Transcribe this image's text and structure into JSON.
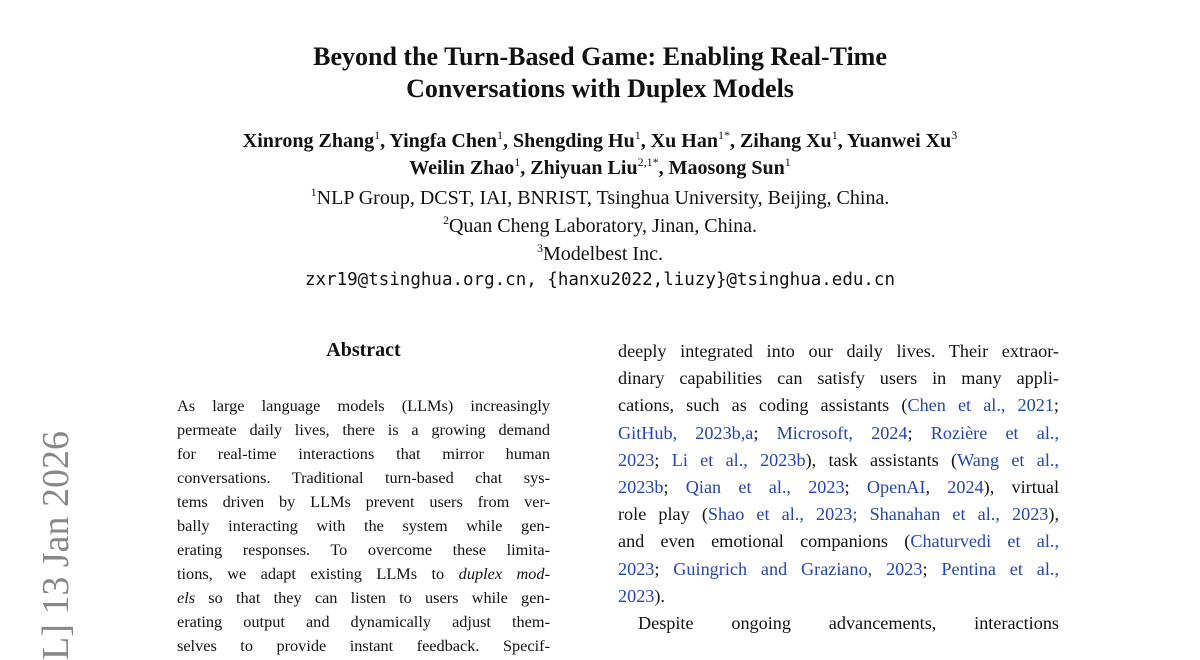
{
  "title": [
    "Beyond the Turn-Based Game: Enabling Real-Time",
    "Conversations with Duplex Models"
  ],
  "authors": [
    [
      {
        "text": "Xinrong Zhang",
        "sup": "1"
      },
      {
        "text": ", Yingfa Chen",
        "sup": "1"
      },
      {
        "text": ", Shengding Hu",
        "sup": "1"
      },
      {
        "text": ", Xu Han",
        "sup": "1*"
      },
      {
        "text": ", Zihang Xu",
        "sup": "1"
      },
      {
        "text": ", Yuanwei Xu",
        "sup": "3"
      }
    ],
    [
      {
        "text": "Weilin Zhao",
        "sup": "1"
      },
      {
        "text": ", Zhiyuan Liu",
        "sup": "2,1*"
      },
      {
        "text": ", Maosong Sun",
        "sup": "1"
      }
    ]
  ],
  "affiliations": [
    {
      "sup": "1",
      "text": "NLP Group, DCST, IAI, BNRIST, Tsinghua University, Beijing, China."
    },
    {
      "sup": "2",
      "text": "Quan Cheng Laboratory, Jinan, China."
    },
    {
      "sup": "3",
      "text": "Modelbest Inc."
    }
  ],
  "email": "zxr19@tsinghua.org.cn, {hanxu2022,liuzy}@tsinghua.edu.cn",
  "side_stamp": "L] 13 Jan 2026",
  "abstract": {
    "heading": "Abstract",
    "lines": [
      {
        "segments": [
          "As large language models (LLMs) increasingly"
        ]
      },
      {
        "segments": [
          "permeate daily lives, there is a growing demand"
        ]
      },
      {
        "segments": [
          "for real-time interactions that mirror human"
        ]
      },
      {
        "segments": [
          "conversations. Traditional turn-based chat sys-"
        ]
      },
      {
        "segments": [
          "tems driven by LLMs prevent users from ver-"
        ]
      },
      {
        "segments": [
          "bally interacting with the system while gen-"
        ]
      },
      {
        "segments": [
          "erating responses. To overcome these limita-"
        ]
      },
      {
        "segments": [
          "tions, we adapt existing LLMs to ",
          {
            "text": "duplex mod-",
            "style": "italic"
          }
        ]
      },
      {
        "segments": [
          {
            "text": "els",
            "style": "italic"
          },
          " so that they can listen to users while gen-"
        ]
      },
      {
        "segments": [
          "erating output and dynamically adjust them-"
        ]
      },
      {
        "segments": [
          "selves to provide instant feedback. Specif-"
        ]
      }
    ]
  },
  "body": {
    "lines": [
      {
        "segments": [
          "deeply integrated into our daily lives. Their extraor-"
        ]
      },
      {
        "segments": [
          "dinary capabilities can satisfy users in many appli-"
        ]
      },
      {
        "segments": [
          "cations, such as coding assistants (",
          {
            "text": "Chen et al., 2021",
            "style": "cite"
          },
          ";"
        ]
      },
      {
        "segments": [
          {
            "text": "GitHub, 2023b,a",
            "style": "cite"
          },
          "; ",
          {
            "text": "Microsoft, 2024",
            "style": "cite"
          },
          "; ",
          {
            "text": "Rozière et al.,",
            "style": "cite"
          }
        ]
      },
      {
        "segments": [
          {
            "text": "2023",
            "style": "cite"
          },
          "; ",
          {
            "text": "Li et al., 2023b",
            "style": "cite"
          },
          "), task assistants (",
          {
            "text": "Wang et al.,",
            "style": "cite"
          }
        ]
      },
      {
        "segments": [
          {
            "text": "2023b",
            "style": "cite"
          },
          "; ",
          {
            "text": "Qian et al., 2023",
            "style": "cite"
          },
          "; ",
          {
            "text": "OpenAI",
            "style": "cite"
          },
          ", ",
          {
            "text": "2024",
            "style": "cite"
          },
          "), virtual"
        ]
      },
      {
        "segments": [
          "role play (",
          {
            "text": "Shao et al., 2023; Shanahan et al., 2023",
            "style": "cite"
          },
          "),"
        ]
      },
      {
        "segments": [
          "and even emotional companions (",
          {
            "text": "Chaturvedi et al.,",
            "style": "cite"
          }
        ]
      },
      {
        "segments": [
          {
            "text": "2023",
            "style": "cite"
          },
          "; ",
          {
            "text": "Guingrich and Graziano, 2023",
            "style": "cite"
          },
          "; ",
          {
            "text": "Pentina et al.,",
            "style": "cite"
          }
        ]
      },
      {
        "segments": [
          {
            "text": "2023",
            "style": "cite"
          },
          ")."
        ],
        "end": true
      },
      {
        "segments": [
          "Despite ongoing advancements, interactions"
        ],
        "indent": true
      }
    ]
  }
}
